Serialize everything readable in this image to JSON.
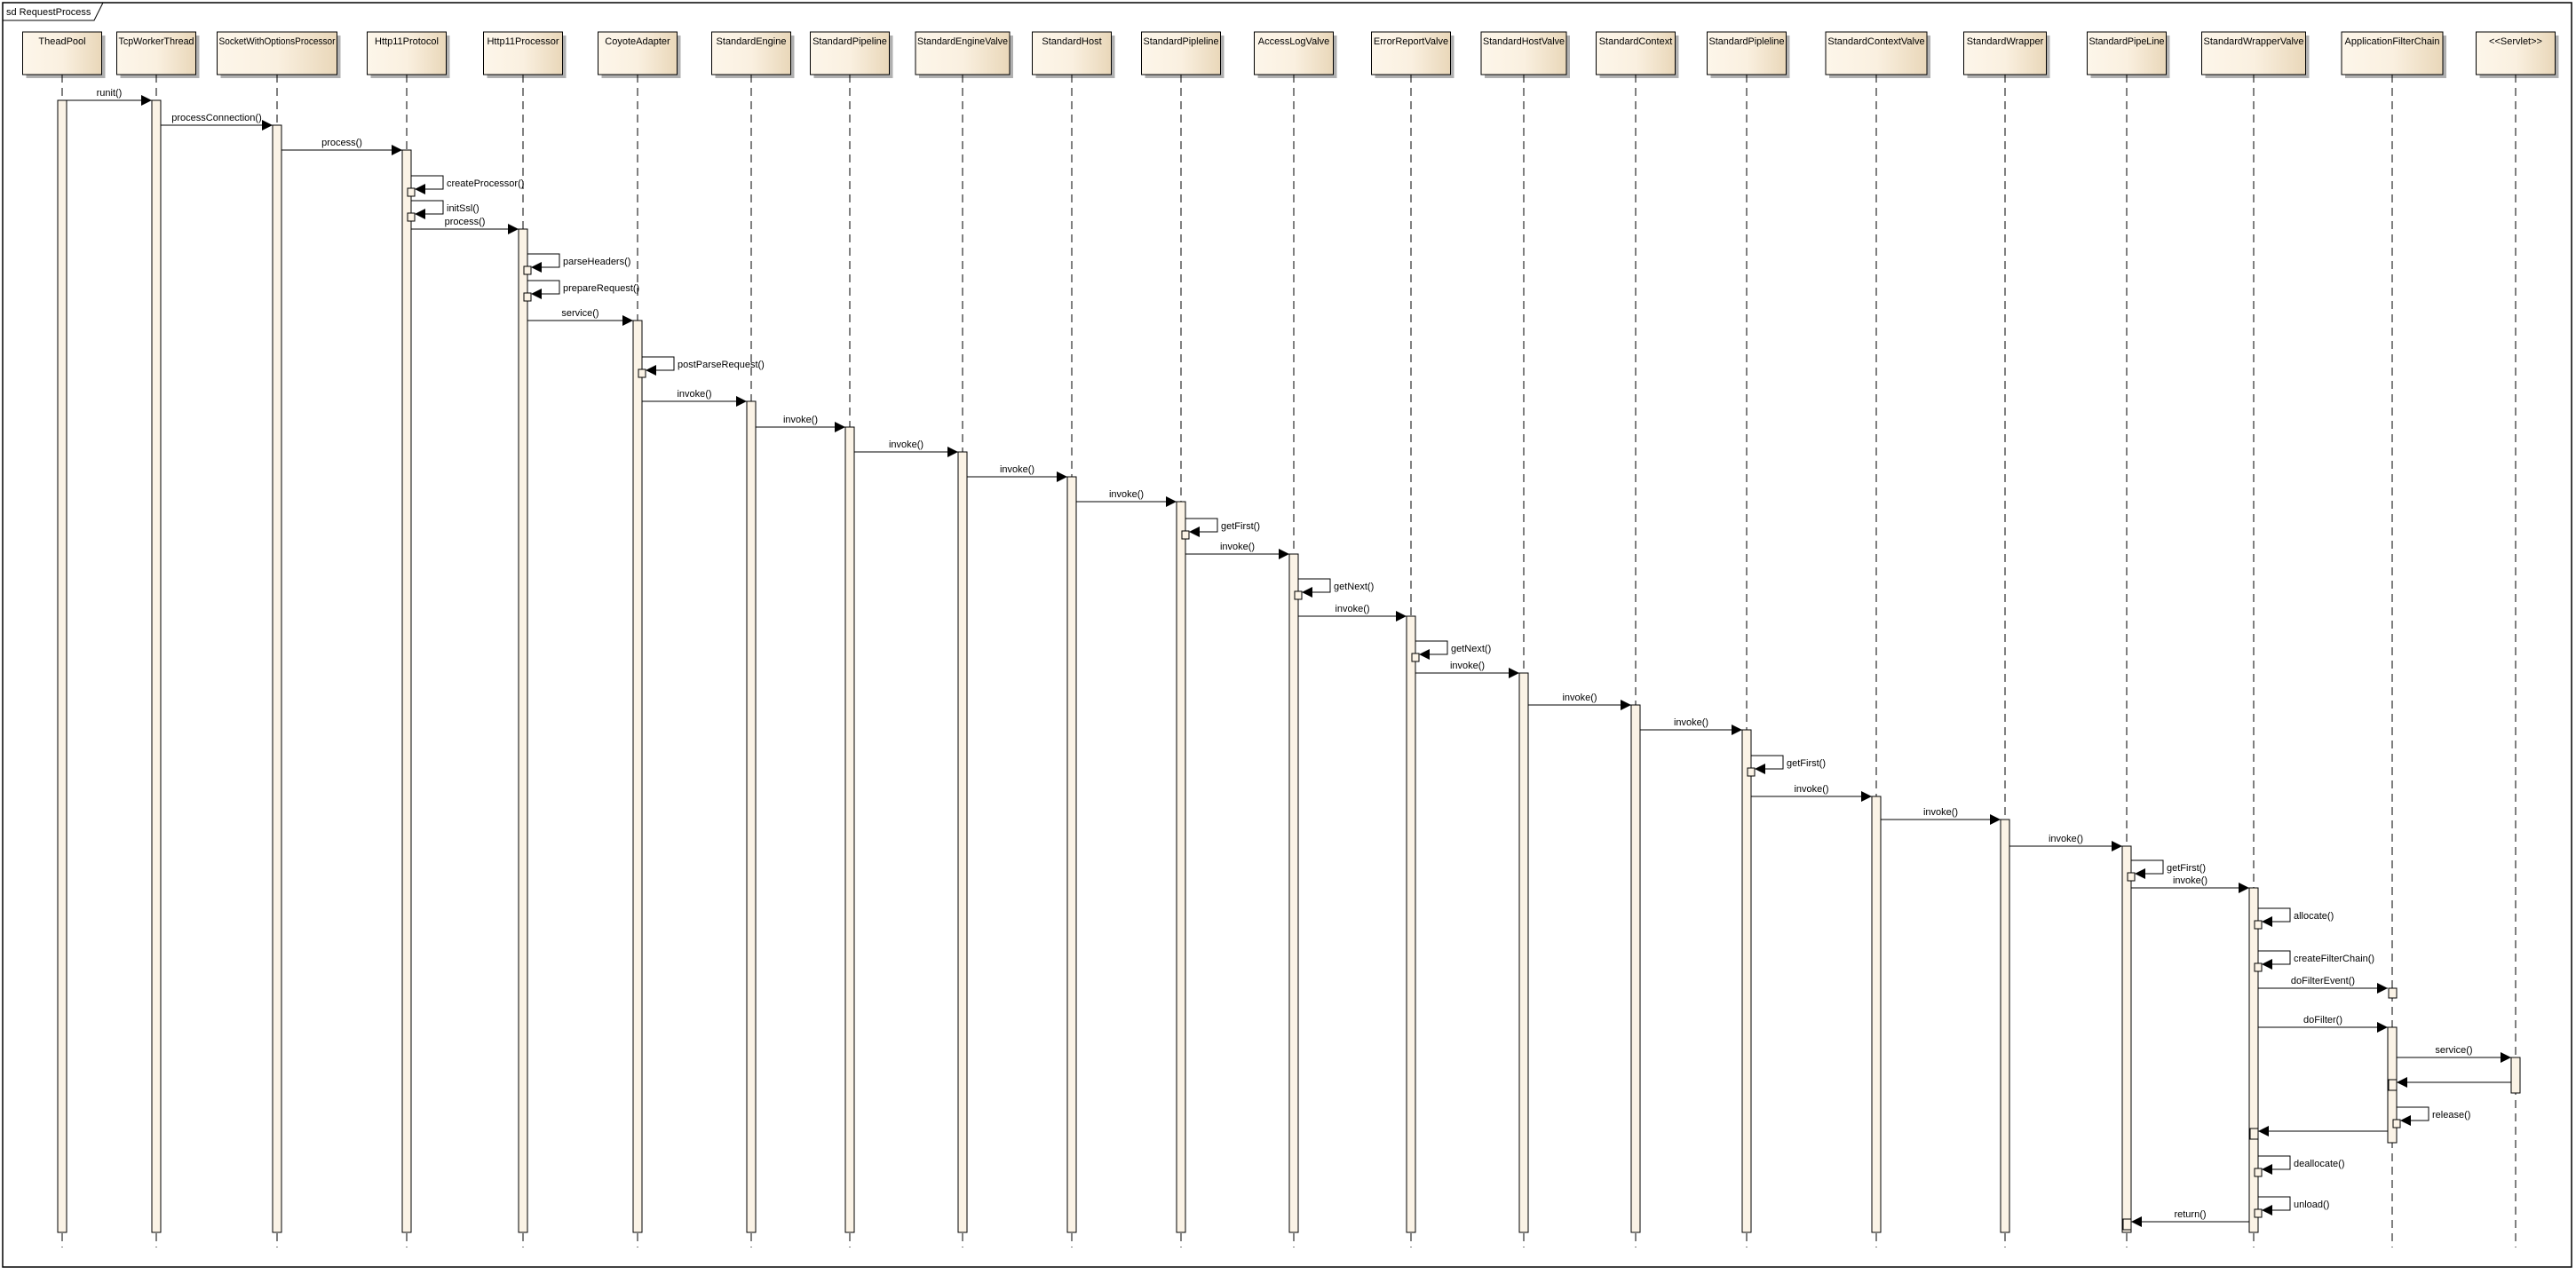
{
  "frame": {
    "title": "sd RequestProcess"
  },
  "colors": {
    "box_fill_light": "#fdf6ea",
    "box_fill_dark": "#ecdcc0",
    "activation_fill": "#fbf3e6",
    "line": "#000000",
    "shadow": "#b0b0b0"
  },
  "participants": [
    "TheadPool",
    "TcpWorkerThread",
    "SocketWithOptionsProcessor",
    "Http11Protocol",
    "Http11Processor",
    "CoyoteAdapter",
    "StandardEngine",
    "StandardPipeline",
    "StandardEngineValve",
    "StandardHost",
    "StandardPipleline",
    "AccessLogValve",
    "ErrorReportValve",
    "StandardHostValve",
    "StandardContext",
    "StandardPipleline",
    "StandardContextValve",
    "StandardWrapper",
    "StandardPipeLine",
    "StandardWrapperValve",
    "ApplicationFilterChain",
    "<<Servlet>>"
  ],
  "messages": [
    {
      "from": 0,
      "to": 1,
      "label": "runit()",
      "kind": "call"
    },
    {
      "from": 1,
      "to": 2,
      "label": "processConnection()",
      "kind": "call"
    },
    {
      "from": 2,
      "to": 3,
      "label": "process()",
      "kind": "call"
    },
    {
      "from": 3,
      "to": 3,
      "label": "createProcessor()",
      "kind": "self"
    },
    {
      "from": 3,
      "to": 3,
      "label": "initSsl()",
      "kind": "self"
    },
    {
      "from": 3,
      "to": 4,
      "label": "process()",
      "kind": "call"
    },
    {
      "from": 4,
      "to": 4,
      "label": "parseHeaders()",
      "kind": "self"
    },
    {
      "from": 4,
      "to": 4,
      "label": "prepareRequest()",
      "kind": "self"
    },
    {
      "from": 4,
      "to": 5,
      "label": "service()",
      "kind": "call"
    },
    {
      "from": 5,
      "to": 5,
      "label": "postParseRequest()",
      "kind": "self"
    },
    {
      "from": 5,
      "to": 6,
      "label": "invoke()",
      "kind": "call"
    },
    {
      "from": 6,
      "to": 7,
      "label": "invoke()",
      "kind": "call"
    },
    {
      "from": 7,
      "to": 8,
      "label": "invoke()",
      "kind": "call"
    },
    {
      "from": 8,
      "to": 9,
      "label": "invoke()",
      "kind": "call"
    },
    {
      "from": 9,
      "to": 10,
      "label": "invoke()",
      "kind": "call"
    },
    {
      "from": 10,
      "to": 10,
      "label": "getFirst()",
      "kind": "self"
    },
    {
      "from": 10,
      "to": 11,
      "label": "invoke()",
      "kind": "call"
    },
    {
      "from": 11,
      "to": 11,
      "label": "getNext()",
      "kind": "self"
    },
    {
      "from": 11,
      "to": 12,
      "label": "invoke()",
      "kind": "call"
    },
    {
      "from": 12,
      "to": 12,
      "label": "getNext()",
      "kind": "self"
    },
    {
      "from": 12,
      "to": 13,
      "label": "invoke()",
      "kind": "call"
    },
    {
      "from": 13,
      "to": 14,
      "label": "invoke()",
      "kind": "call"
    },
    {
      "from": 14,
      "to": 15,
      "label": "invoke()",
      "kind": "call"
    },
    {
      "from": 15,
      "to": 15,
      "label": "getFirst()",
      "kind": "self"
    },
    {
      "from": 15,
      "to": 16,
      "label": "invoke()",
      "kind": "call"
    },
    {
      "from": 16,
      "to": 17,
      "label": "invoke()",
      "kind": "call"
    },
    {
      "from": 17,
      "to": 18,
      "label": "invoke()",
      "kind": "call"
    },
    {
      "from": 18,
      "to": 18,
      "label": "getFirst()",
      "kind": "self"
    },
    {
      "from": 18,
      "to": 19,
      "label": "invoke()",
      "kind": "call"
    },
    {
      "from": 19,
      "to": 19,
      "label": "allocate()",
      "kind": "self"
    },
    {
      "from": 19,
      "to": 19,
      "label": "createFilterChain()",
      "kind": "self"
    },
    {
      "from": 19,
      "to": 20,
      "label": "doFilterEvent()",
      "kind": "call"
    },
    {
      "from": 19,
      "to": 20,
      "label": "doFilter()",
      "kind": "call"
    },
    {
      "from": 20,
      "to": 21,
      "label": "service()",
      "kind": "call"
    },
    {
      "from": 21,
      "to": 20,
      "label": "",
      "kind": "return"
    },
    {
      "from": 20,
      "to": 20,
      "label": "release()",
      "kind": "self"
    },
    {
      "from": 20,
      "to": 19,
      "label": "",
      "kind": "return"
    },
    {
      "from": 19,
      "to": 19,
      "label": "deallocate()",
      "kind": "self"
    },
    {
      "from": 19,
      "to": 19,
      "label": "unload()",
      "kind": "self"
    },
    {
      "from": 19,
      "to": 18,
      "label": "return()",
      "kind": "return"
    }
  ]
}
